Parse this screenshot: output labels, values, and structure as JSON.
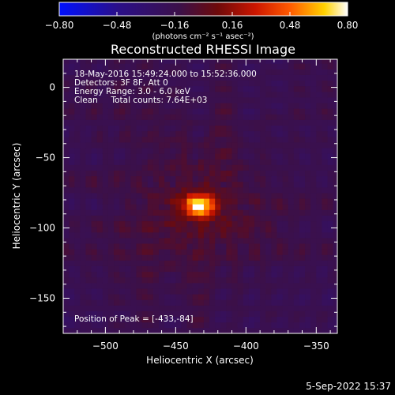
{
  "chart_data": {
    "type": "heatmap",
    "title": "Reconstructed RHESSI Image",
    "xlabel": "Heliocentric X (arcsec)",
    "ylabel": "Heliocentric Y (arcsec)",
    "xlim": [
      -530,
      -335
    ],
    "ylim": [
      -175,
      20
    ],
    "x_ticks": [
      -500,
      -450,
      -400,
      -350
    ],
    "x_tick_labels": [
      "−500",
      "−450",
      "−400",
      "−350"
    ],
    "y_ticks": [
      0,
      -50,
      -100,
      -150
    ],
    "y_tick_labels": [
      "0",
      "−50",
      "−100",
      "−150"
    ],
    "colorbar": {
      "min": -0.8,
      "max": 0.8,
      "ticks": [
        -0.8,
        -0.48,
        -0.16,
        0.16,
        0.48,
        0.8
      ],
      "tick_labels": [
        "−0.80",
        "−0.48",
        "−0.16",
        "0.16",
        "0.48",
        "0.80"
      ],
      "unit": "(photons cm⁻² s⁻¹ asec⁻²)",
      "colormap": "rhessi blue-purple-red-yellow-white"
    },
    "peak": {
      "x": -433,
      "y": -84,
      "value": 0.8
    },
    "annotations": [
      "18-May-2016 15:49:24.000 to 15:52:36.000",
      "Detectors: 3F 8F, Att 0",
      "Energy Range: 3.0 - 6.0 keV",
      "Clean     Total counts: 7.64E+03",
      "Position of Peak = [-433,-84]"
    ]
  },
  "timestamp": "5-Sep-2022 15:37",
  "colors": {
    "background": "#000000",
    "text": "#ffffff",
    "colormap_stops": [
      "#0010ff",
      "#2a0f8a",
      "#3c1048",
      "#6e0a0a",
      "#cc1600",
      "#ff5a00",
      "#ffd200",
      "#ffffff"
    ]
  }
}
